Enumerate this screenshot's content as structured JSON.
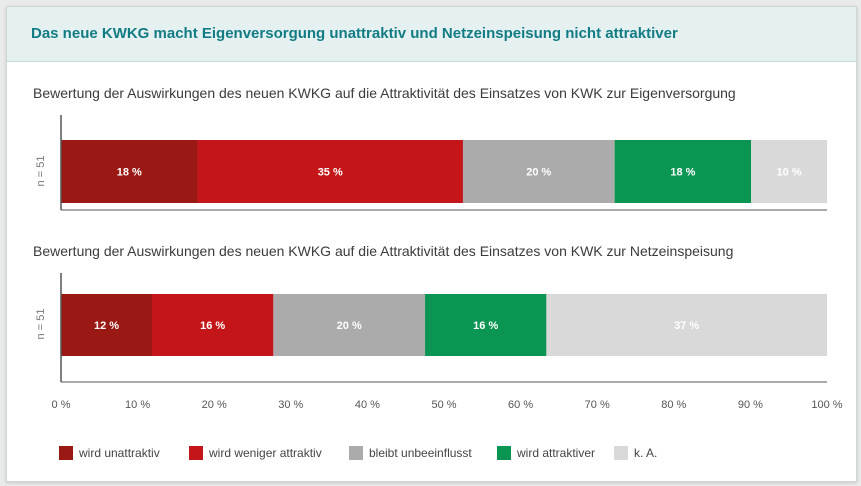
{
  "header": {
    "title": "Das neue KWKG macht Eigenversorgung unattraktiv und Netzeinspeisung nicht attraktiver"
  },
  "colors": {
    "header_bg": "#e5f0f1",
    "header_text": "#127c84",
    "wird_unattraktiv": "#9b1915",
    "wird_weniger_attraktiv": "#c41619",
    "bleibt_unbeeinflusst": "#ababab",
    "wird_attraktiver": "#0b9553",
    "k_a": "#d9d9d9"
  },
  "chart_data": {
    "type": "bar",
    "orientation": "horizontal-stacked-100",
    "xlim": [
      0,
      100
    ],
    "x_ticks": [
      "0 %",
      "10 %",
      "20 %",
      "30 %",
      "40 %",
      "50 %",
      "60 %",
      "70 %",
      "80 %",
      "90 %",
      "100 %"
    ],
    "categories": [
      "wird unattraktiv",
      "wird weniger attraktiv",
      "bleibt unbeeinflusst",
      "wird attraktiver",
      "k. A."
    ],
    "charts": [
      {
        "title": "Bewertung der Auswirkungen des neuen KWKG auf die Attraktivität des Einsatzes von KWK zur Eigenversorgung",
        "n_label": "n = 51",
        "values": [
          18,
          35,
          20,
          18,
          10
        ],
        "labels": [
          "18 %",
          "35 %",
          "20 %",
          "18 %",
          "10 %"
        ]
      },
      {
        "title": "Bewertung der Auswirkungen des neuen KWKG auf die Attraktivität des Einsatzes von KWK zur Netzeinspeisung",
        "n_label": "n = 51",
        "values": [
          12,
          16,
          20,
          16,
          37
        ],
        "labels": [
          "12 %",
          "16 %",
          "20 %",
          "16 %",
          "37 %"
        ]
      }
    ],
    "legend": [
      {
        "label": "wird unattraktiv",
        "color": "#9b1915"
      },
      {
        "label": "wird weniger attraktiv",
        "color": "#c41619"
      },
      {
        "label": "bleibt unbeeinflusst",
        "color": "#ababab"
      },
      {
        "label": "wird attraktiver",
        "color": "#0b9553"
      },
      {
        "label": "k. A.",
        "color": "#d9d9d9"
      }
    ]
  }
}
